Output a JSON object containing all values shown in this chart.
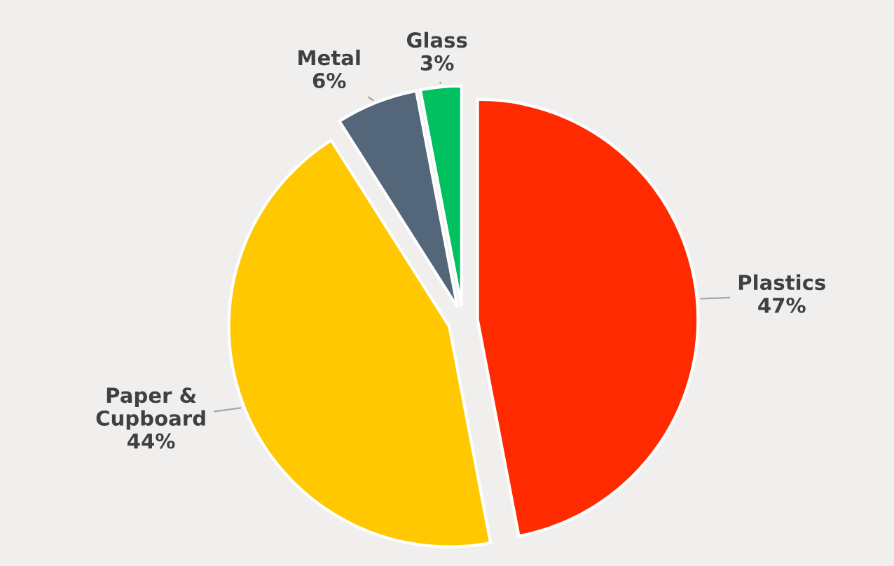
{
  "chart_data": {
    "type": "pie",
    "categories": [
      "Plastics",
      "Paper &\nCupboard",
      "Metal",
      "Glass"
    ],
    "values": [
      47,
      44,
      6,
      3
    ],
    "value_labels": [
      "47%",
      "44%",
      "6%",
      "3%"
    ],
    "colors": [
      "#ff2a00",
      "#ffc800",
      "#54667a",
      "#00c060"
    ],
    "legend": false
  }
}
